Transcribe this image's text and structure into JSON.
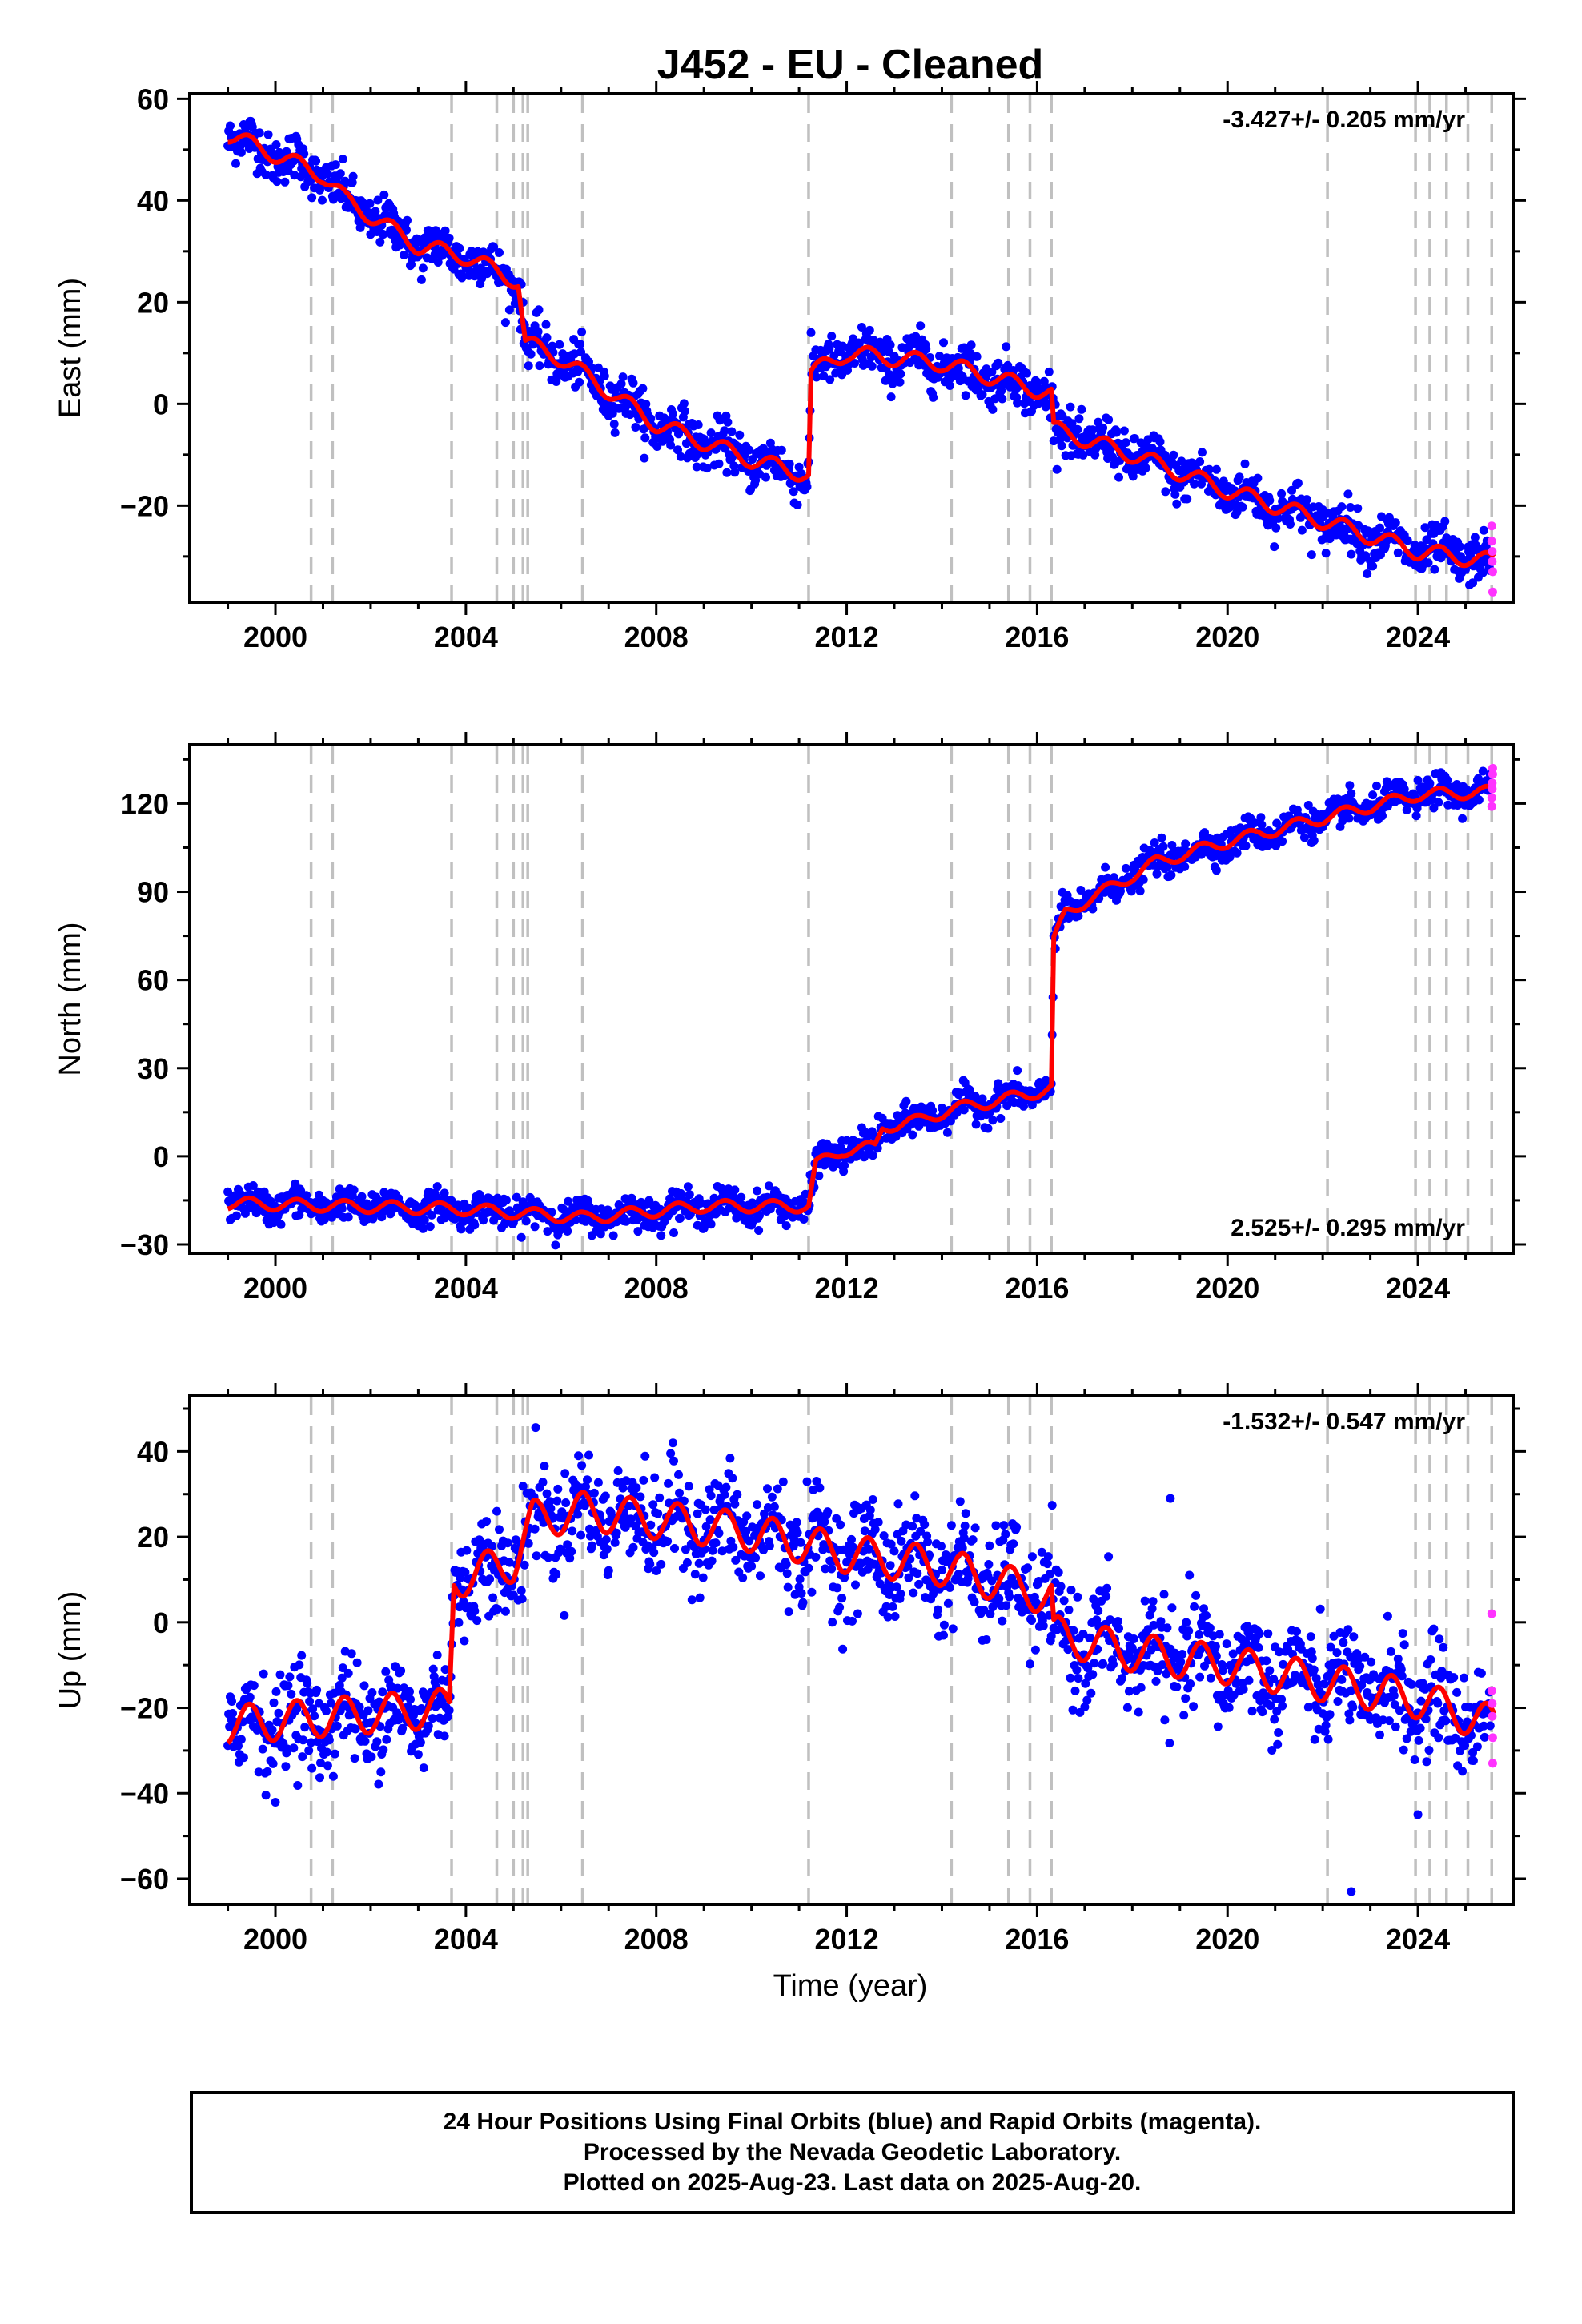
{
  "title": "J452  - EU - Cleaned",
  "xlabel": "Time (year)",
  "footer": {
    "line1": "24 Hour Positions Using Final Orbits (blue) and Rapid Orbits (magenta).",
    "line2": "Processed by the Nevada Geodetic Laboratory.",
    "line3": "Plotted on 2025-Aug-23. Last data on 2025-Aug-20."
  },
  "colors": {
    "final_orbits": "#0000ff",
    "rapid_orbits": "#ff33ff",
    "model": "#ff0000",
    "event_lines": "#c0c0c0"
  },
  "chart_data": [
    {
      "type": "scatter",
      "panel": "east",
      "ylabel": "East (mm)",
      "rate": "-3.427+/- 0.205 mm/yr",
      "rate_position": "top-right",
      "xlim": [
        1998.2,
        2026.0
      ],
      "ylim": [
        -39,
        61
      ],
      "xticks": [
        2000,
        2004,
        2008,
        2012,
        2016,
        2020,
        2024
      ],
      "yticks": [
        -20,
        0,
        20,
        40,
        60
      ],
      "yticklabels": [
        "−20",
        "0",
        "20",
        "40",
        "60"
      ],
      "trend": [
        [
          1999.0,
          53
        ],
        [
          2001.0,
          45
        ],
        [
          2001.5,
          40
        ],
        [
          2003.0,
          31
        ],
        [
          2004.0,
          29
        ],
        [
          2005.1,
          24
        ],
        [
          2005.25,
          12
        ],
        [
          2006.0,
          9
        ],
        [
          2008.0,
          -4
        ],
        [
          2010.0,
          -11
        ],
        [
          2011.2,
          -14
        ],
        [
          2011.25,
          6
        ],
        [
          2012.0,
          10
        ],
        [
          2014.0,
          8
        ],
        [
          2016.3,
          2
        ],
        [
          2016.35,
          -5
        ],
        [
          2018.0,
          -10
        ],
        [
          2020.0,
          -17
        ],
        [
          2022.0,
          -23
        ],
        [
          2024.0,
          -29
        ],
        [
          2025.6,
          -31
        ]
      ],
      "steps_mm": [],
      "annual_amplitude_mm": 1.6,
      "scatter_mm": 2.3,
      "outliers_mm": [],
      "rapid_points": [
        [
          2025.55,
          -24
        ],
        [
          2025.55,
          -27
        ],
        [
          2025.56,
          -29
        ],
        [
          2025.56,
          -31
        ],
        [
          2025.57,
          -33
        ],
        [
          2025.57,
          -37
        ]
      ]
    },
    {
      "type": "scatter",
      "panel": "north",
      "ylabel": "North (mm)",
      "rate": "2.525+/- 0.295 mm/yr",
      "rate_position": "bottom-right",
      "xlim": [
        1998.2,
        2026.0
      ],
      "ylim": [
        -33,
        140
      ],
      "xticks": [
        2000,
        2004,
        2008,
        2012,
        2016,
        2020,
        2024
      ],
      "yticks": [
        -30,
        0,
        30,
        60,
        90,
        120
      ],
      "yticklabels": [
        "−30",
        "0",
        "30",
        "60",
        "90",
        "120"
      ],
      "trend": [
        [
          1999.0,
          -16
        ],
        [
          2004.0,
          -18
        ],
        [
          2006.5,
          -21
        ],
        [
          2009.0,
          -17
        ],
        [
          2011.2,
          -17
        ],
        [
          2011.35,
          -3
        ],
        [
          2011.9,
          2
        ],
        [
          2012.6,
          3
        ],
        [
          2012.75,
          10
        ],
        [
          2013.5,
          12
        ],
        [
          2014.2,
          16
        ],
        [
          2015.5,
          20
        ],
        [
          2016.3,
          23
        ],
        [
          2016.35,
          73
        ],
        [
          2016.6,
          83
        ],
        [
          2017.5,
          91
        ],
        [
          2018.5,
          100
        ],
        [
          2020.0,
          107
        ],
        [
          2022.0,
          115
        ],
        [
          2024.0,
          123
        ],
        [
          2025.6,
          124
        ]
      ],
      "steps_mm": [],
      "annual_amplitude_mm": 2.0,
      "scatter_mm": 2.6,
      "outliers_mm": [],
      "rapid_points": [
        [
          2025.55,
          119
        ],
        [
          2025.55,
          122
        ],
        [
          2025.56,
          125
        ],
        [
          2025.56,
          127
        ],
        [
          2025.57,
          130
        ],
        [
          2025.57,
          132
        ]
      ]
    },
    {
      "type": "scatter",
      "panel": "up",
      "ylabel": "Up (mm)",
      "rate": "-1.532+/- 0.547 mm/yr",
      "rate_position": "top-right",
      "xlim": [
        1998.2,
        2026.0
      ],
      "ylim": [
        -66,
        53
      ],
      "xticks": [
        2000,
        2004,
        2008,
        2012,
        2016,
        2020,
        2024
      ],
      "yticks": [
        -60,
        -40,
        -20,
        0,
        20,
        40
      ],
      "yticklabels": [
        "−60",
        "−40",
        "−20",
        "0",
        "20",
        "40"
      ],
      "trend": [
        [
          1999.0,
          -24
        ],
        [
          2003.65,
          -20
        ],
        [
          2003.75,
          10
        ],
        [
          2005.0,
          14
        ],
        [
          2005.4,
          24
        ],
        [
          2006.5,
          26
        ],
        [
          2008.0,
          24
        ],
        [
          2010.0,
          21
        ],
        [
          2012.0,
          16
        ],
        [
          2014.0,
          13
        ],
        [
          2016.3,
          6
        ],
        [
          2016.35,
          -3
        ],
        [
          2018.0,
          -7
        ],
        [
          2020.0,
          -10
        ],
        [
          2022.0,
          -14
        ],
        [
          2024.0,
          -18
        ],
        [
          2025.6,
          -24
        ]
      ],
      "steps_mm": [],
      "annual_amplitude_mm": 4.5,
      "scatter_mm": 6.0,
      "outliers_mm": [
        [
          2022.6,
          -63
        ],
        [
          2018.8,
          29
        ],
        [
          2024.0,
          -45
        ]
      ],
      "rapid_points": [
        [
          2025.55,
          2
        ],
        [
          2025.55,
          -16
        ],
        [
          2025.56,
          -19
        ],
        [
          2025.56,
          -22
        ],
        [
          2025.57,
          -27
        ],
        [
          2025.57,
          -33
        ]
      ]
    }
  ],
  "event_lines_years": [
    2000.75,
    2001.2,
    2003.7,
    2004.65,
    2005.0,
    2005.2,
    2005.3,
    2006.45,
    2011.2,
    2014.2,
    2015.4,
    2015.85,
    2016.3,
    2022.1,
    2023.95,
    2024.25,
    2024.6,
    2025.05,
    2025.55
  ]
}
